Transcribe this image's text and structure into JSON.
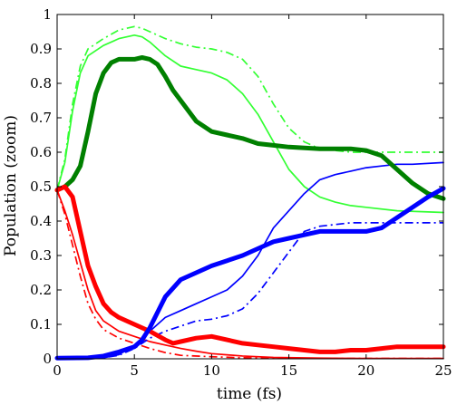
{
  "chart_data": {
    "type": "line",
    "title": "",
    "xlabel": "time (fs)",
    "ylabel": "Population (zoom)",
    "xlim": [
      0,
      25
    ],
    "ylim": [
      0,
      1
    ],
    "xticks": [
      0,
      5,
      10,
      15,
      20,
      25
    ],
    "yticks": [
      0,
      0.1,
      0.2,
      0.3,
      0.4,
      0.5,
      0.6,
      0.7,
      0.8,
      0.9,
      1
    ],
    "xtick_labels": [
      "0",
      "5",
      "10",
      "15",
      "20",
      "25"
    ],
    "ytick_labels": [
      "0",
      "0.1",
      "0.2",
      "0.3",
      "0.4",
      "0.5",
      "0.6",
      "0.7",
      "0.8",
      "0.9",
      "1"
    ],
    "grid": false,
    "legend": "none",
    "series": [
      {
        "color": "#008000",
        "style": "solid",
        "weight": "thick",
        "points": [
          [
            0,
            0.49
          ],
          [
            0.5,
            0.5
          ],
          [
            1,
            0.52
          ],
          [
            1.5,
            0.56
          ],
          [
            2,
            0.66
          ],
          [
            2.5,
            0.77
          ],
          [
            3,
            0.83
          ],
          [
            3.5,
            0.86
          ],
          [
            4,
            0.87
          ],
          [
            5,
            0.87
          ],
          [
            5.5,
            0.875
          ],
          [
            6,
            0.87
          ],
          [
            6.5,
            0.855
          ],
          [
            7,
            0.82
          ],
          [
            7.5,
            0.78
          ],
          [
            8,
            0.75
          ],
          [
            9,
            0.69
          ],
          [
            10,
            0.66
          ],
          [
            11,
            0.65
          ],
          [
            12,
            0.64
          ],
          [
            13,
            0.625
          ],
          [
            14,
            0.62
          ],
          [
            15,
            0.615
          ],
          [
            17,
            0.61
          ],
          [
            19,
            0.61
          ],
          [
            20,
            0.605
          ],
          [
            21,
            0.59
          ],
          [
            22,
            0.55
          ],
          [
            23,
            0.51
          ],
          [
            24,
            0.48
          ],
          [
            25,
            0.465
          ]
        ]
      },
      {
        "color": "#33ff33",
        "style": "solid",
        "weight": "thin",
        "points": [
          [
            0,
            0.49
          ],
          [
            0.5,
            0.57
          ],
          [
            1,
            0.72
          ],
          [
            1.5,
            0.83
          ],
          [
            2,
            0.88
          ],
          [
            3,
            0.91
          ],
          [
            4,
            0.93
          ],
          [
            5,
            0.94
          ],
          [
            5.5,
            0.935
          ],
          [
            6,
            0.92
          ],
          [
            7,
            0.88
          ],
          [
            8,
            0.85
          ],
          [
            9,
            0.84
          ],
          [
            10,
            0.83
          ],
          [
            11,
            0.81
          ],
          [
            12,
            0.77
          ],
          [
            13,
            0.71
          ],
          [
            14,
            0.63
          ],
          [
            15,
            0.55
          ],
          [
            16,
            0.5
          ],
          [
            17,
            0.47
          ],
          [
            18,
            0.455
          ],
          [
            19,
            0.445
          ],
          [
            20,
            0.44
          ],
          [
            22,
            0.43
          ],
          [
            25,
            0.425
          ]
        ]
      },
      {
        "color": "#33ff33",
        "style": "dashdot",
        "weight": "thin",
        "points": [
          [
            0,
            0.49
          ],
          [
            0.5,
            0.58
          ],
          [
            1,
            0.74
          ],
          [
            1.5,
            0.85
          ],
          [
            2,
            0.9
          ],
          [
            3,
            0.93
          ],
          [
            4,
            0.955
          ],
          [
            5,
            0.965
          ],
          [
            5.5,
            0.96
          ],
          [
            6,
            0.95
          ],
          [
            7,
            0.93
          ],
          [
            8,
            0.915
          ],
          [
            9,
            0.905
          ],
          [
            10,
            0.9
          ],
          [
            11,
            0.89
          ],
          [
            12,
            0.87
          ],
          [
            13,
            0.82
          ],
          [
            14,
            0.74
          ],
          [
            15,
            0.67
          ],
          [
            16,
            0.63
          ],
          [
            17,
            0.61
          ],
          [
            18,
            0.605
          ],
          [
            19,
            0.6
          ],
          [
            20,
            0.6
          ],
          [
            22,
            0.6
          ],
          [
            25,
            0.6
          ]
        ]
      },
      {
        "color": "#ff0000",
        "style": "solid",
        "weight": "thick",
        "points": [
          [
            0,
            0.49
          ],
          [
            0.5,
            0.5
          ],
          [
            1,
            0.47
          ],
          [
            1.5,
            0.37
          ],
          [
            2,
            0.27
          ],
          [
            2.5,
            0.21
          ],
          [
            3,
            0.16
          ],
          [
            3.5,
            0.135
          ],
          [
            4,
            0.12
          ],
          [
            5,
            0.1
          ],
          [
            6,
            0.08
          ],
          [
            7,
            0.055
          ],
          [
            7.5,
            0.045
          ],
          [
            8,
            0.05
          ],
          [
            9,
            0.06
          ],
          [
            10,
            0.065
          ],
          [
            11,
            0.055
          ],
          [
            12,
            0.045
          ],
          [
            13,
            0.04
          ],
          [
            14,
            0.035
          ],
          [
            15,
            0.03
          ],
          [
            16,
            0.025
          ],
          [
            17,
            0.02
          ],
          [
            18,
            0.02
          ],
          [
            19,
            0.025
          ],
          [
            20,
            0.025
          ],
          [
            21,
            0.03
          ],
          [
            22,
            0.035
          ],
          [
            23,
            0.035
          ],
          [
            24,
            0.035
          ],
          [
            25,
            0.035
          ]
        ]
      },
      {
        "color": "#ff0000",
        "style": "solid",
        "weight": "thin",
        "points": [
          [
            0,
            0.49
          ],
          [
            0.5,
            0.43
          ],
          [
            1,
            0.36
          ],
          [
            1.5,
            0.28
          ],
          [
            2,
            0.2
          ],
          [
            2.5,
            0.14
          ],
          [
            3,
            0.11
          ],
          [
            4,
            0.08
          ],
          [
            5,
            0.065
          ],
          [
            6,
            0.05
          ],
          [
            7,
            0.04
          ],
          [
            8,
            0.03
          ],
          [
            9,
            0.022
          ],
          [
            10,
            0.015
          ],
          [
            12,
            0.008
          ],
          [
            14,
            0.004
          ],
          [
            17,
            0.002
          ],
          [
            20,
            0.001
          ],
          [
            25,
            0.001
          ]
        ]
      },
      {
        "color": "#ff0000",
        "style": "dashdot",
        "weight": "thin",
        "points": [
          [
            0,
            0.49
          ],
          [
            0.5,
            0.42
          ],
          [
            1,
            0.33
          ],
          [
            1.5,
            0.24
          ],
          [
            2,
            0.16
          ],
          [
            2.5,
            0.115
          ],
          [
            3,
            0.085
          ],
          [
            4,
            0.06
          ],
          [
            5,
            0.045
          ],
          [
            6,
            0.03
          ],
          [
            7,
            0.018
          ],
          [
            8,
            0.01
          ],
          [
            10,
            0.006
          ],
          [
            12,
            0.003
          ],
          [
            15,
            0.001
          ],
          [
            25,
            0.001
          ]
        ]
      },
      {
        "color": "#0000ff",
        "style": "solid",
        "weight": "thick",
        "points": [
          [
            0,
            0.002
          ],
          [
            2,
            0.003
          ],
          [
            3,
            0.008
          ],
          [
            4,
            0.02
          ],
          [
            5,
            0.035
          ],
          [
            5.5,
            0.055
          ],
          [
            6,
            0.09
          ],
          [
            7,
            0.18
          ],
          [
            8,
            0.23
          ],
          [
            9,
            0.25
          ],
          [
            10,
            0.27
          ],
          [
            11,
            0.285
          ],
          [
            12,
            0.3
          ],
          [
            13,
            0.32
          ],
          [
            14,
            0.34
          ],
          [
            15,
            0.35
          ],
          [
            16,
            0.36
          ],
          [
            17,
            0.37
          ],
          [
            18,
            0.37
          ],
          [
            19,
            0.37
          ],
          [
            20,
            0.37
          ],
          [
            21,
            0.38
          ],
          [
            22,
            0.41
          ],
          [
            23,
            0.44
          ],
          [
            24,
            0.47
          ],
          [
            25,
            0.495
          ]
        ]
      },
      {
        "color": "#0000ff",
        "style": "solid",
        "weight": "thin",
        "points": [
          [
            0,
            0.002
          ],
          [
            3,
            0.003
          ],
          [
            4,
            0.012
          ],
          [
            5,
            0.04
          ],
          [
            6,
            0.08
          ],
          [
            7,
            0.12
          ],
          [
            8,
            0.14
          ],
          [
            9,
            0.16
          ],
          [
            10,
            0.18
          ],
          [
            11,
            0.2
          ],
          [
            12,
            0.24
          ],
          [
            13,
            0.3
          ],
          [
            14,
            0.38
          ],
          [
            15,
            0.43
          ],
          [
            16,
            0.48
          ],
          [
            17,
            0.52
          ],
          [
            18,
            0.535
          ],
          [
            19,
            0.545
          ],
          [
            20,
            0.555
          ],
          [
            21,
            0.56
          ],
          [
            22,
            0.565
          ],
          [
            23,
            0.565
          ],
          [
            25,
            0.57
          ]
        ]
      },
      {
        "color": "#0000ff",
        "style": "dashdot",
        "weight": "thin",
        "points": [
          [
            0,
            0.002
          ],
          [
            3,
            0.003
          ],
          [
            4,
            0.01
          ],
          [
            5,
            0.03
          ],
          [
            6,
            0.06
          ],
          [
            7,
            0.08
          ],
          [
            8,
            0.095
          ],
          [
            9,
            0.11
          ],
          [
            10,
            0.115
          ],
          [
            11,
            0.125
          ],
          [
            12,
            0.145
          ],
          [
            13,
            0.19
          ],
          [
            14,
            0.25
          ],
          [
            15,
            0.31
          ],
          [
            16,
            0.37
          ],
          [
            17,
            0.385
          ],
          [
            18,
            0.39
          ],
          [
            19,
            0.395
          ],
          [
            20,
            0.395
          ],
          [
            22,
            0.395
          ],
          [
            25,
            0.395
          ]
        ]
      }
    ]
  }
}
